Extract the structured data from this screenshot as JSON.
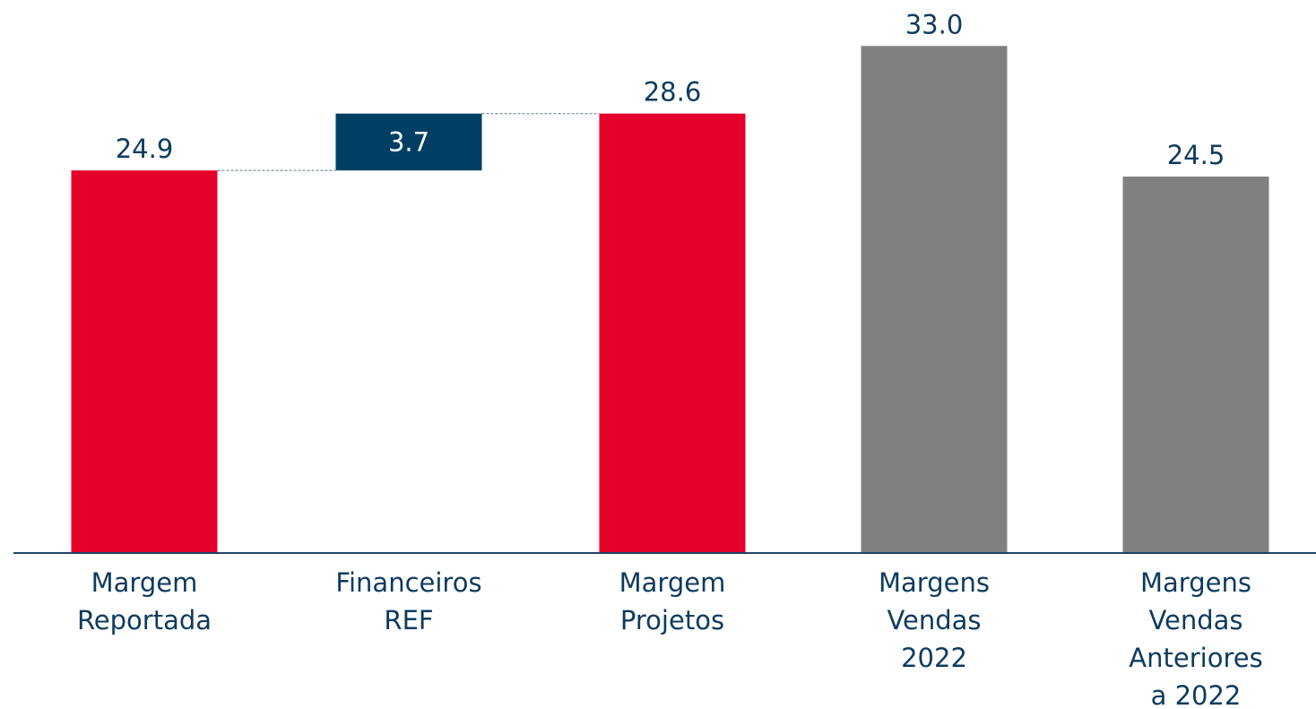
{
  "chart_data": {
    "type": "waterfall",
    "categories": [
      "Margem\nReportada",
      "Financeiros\nREF",
      "Margem\nProjetos",
      "Margens\nVendas\n2022",
      "Margens\nVendas\nAnteriores\na 2022"
    ],
    "values": [
      24.9,
      3.7,
      28.6,
      33.0,
      24.5
    ],
    "value_labels": [
      "24.9",
      "3.7",
      "28.6",
      "33.0",
      "24.5"
    ],
    "measure": [
      "absolute",
      "relative",
      "absolute",
      "absolute",
      "absolute"
    ],
    "colors": [
      "#e4002b",
      "#003f63",
      "#e4002b",
      "#808080",
      "#808080"
    ],
    "ylim": [
      0,
      35
    ]
  }
}
